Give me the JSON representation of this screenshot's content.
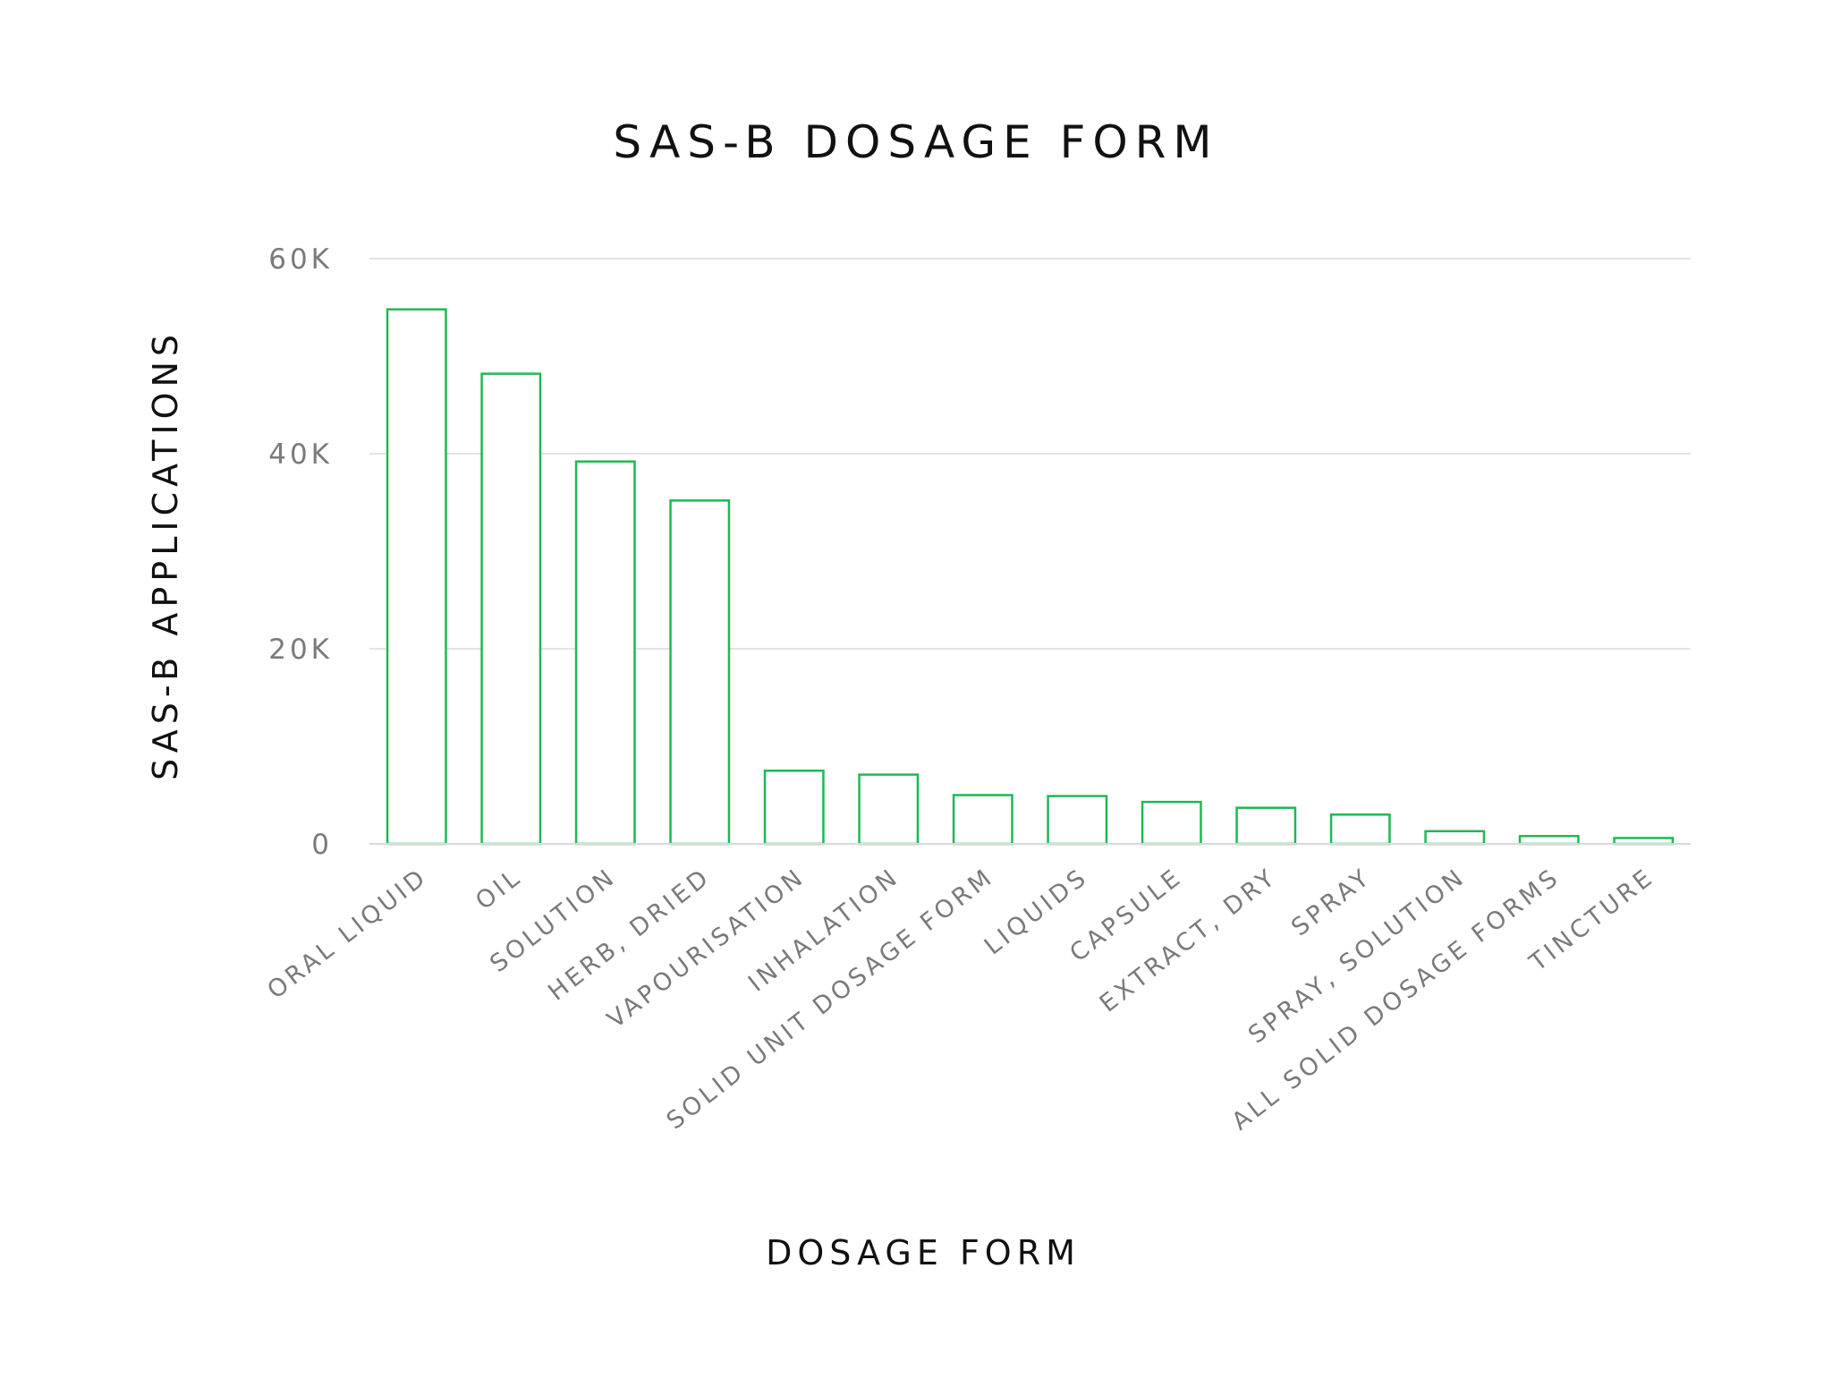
{
  "chart_data": {
    "type": "bar",
    "title": "SAS-B DOSAGE FORM",
    "xlabel": "DOSAGE FORM",
    "ylabel": "SAS-B APPLICATIONS",
    "categories": [
      "ORAL LIQUID",
      "OIL",
      "SOLUTION",
      "HERB, DRIED",
      "VAPOURISATION",
      "INHALATION",
      "SOLID UNIT DOSAGE FORM",
      "LIQUIDS",
      "CAPSULE",
      "EXTRACT, DRY",
      "SPRAY",
      "SPRAY, SOLUTION",
      "ALL SOLID DOSAGE FORMS",
      "TINCTURE"
    ],
    "values": [
      54800,
      48200,
      39200,
      35200,
      7500,
      7100,
      5000,
      4900,
      4300,
      3700,
      3000,
      1300,
      800,
      600
    ],
    "ylim": [
      0,
      60000
    ],
    "yticks": [
      0,
      20000,
      40000,
      60000
    ],
    "ytick_labels": [
      "0",
      "20K",
      "40K",
      "60K"
    ],
    "grid": true,
    "legend": "none",
    "colors": {
      "bar_stroke": "#1db954",
      "bar_fill": "#ffffff"
    }
  }
}
